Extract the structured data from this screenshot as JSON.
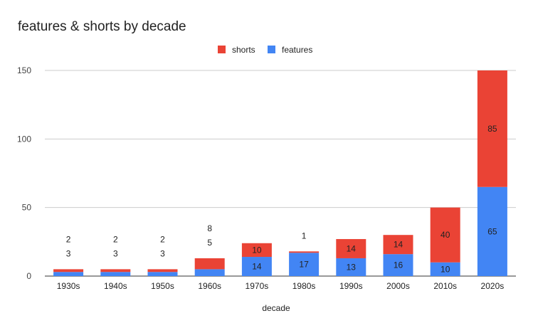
{
  "chart_data": {
    "type": "bar",
    "stacked": true,
    "title": "features & shorts by decade",
    "xlabel": "decade",
    "ylabel": "",
    "ylim": [
      0,
      150
    ],
    "yticks": [
      0,
      50,
      100,
      150
    ],
    "grid": true,
    "legend_position": "top",
    "categories": [
      "1930s",
      "1940s",
      "1950s",
      "1960s",
      "1970s",
      "1980s",
      "1990s",
      "2000s",
      "2010s",
      "2020s"
    ],
    "series": [
      {
        "name": "features",
        "color": "#4285f4",
        "values": [
          3,
          3,
          3,
          5,
          14,
          17,
          13,
          16,
          10,
          65
        ]
      },
      {
        "name": "shorts",
        "color": "#ea4335",
        "values": [
          2,
          2,
          2,
          8,
          10,
          1,
          14,
          14,
          40,
          85
        ]
      }
    ],
    "legend_order": [
      "shorts",
      "features"
    ]
  }
}
